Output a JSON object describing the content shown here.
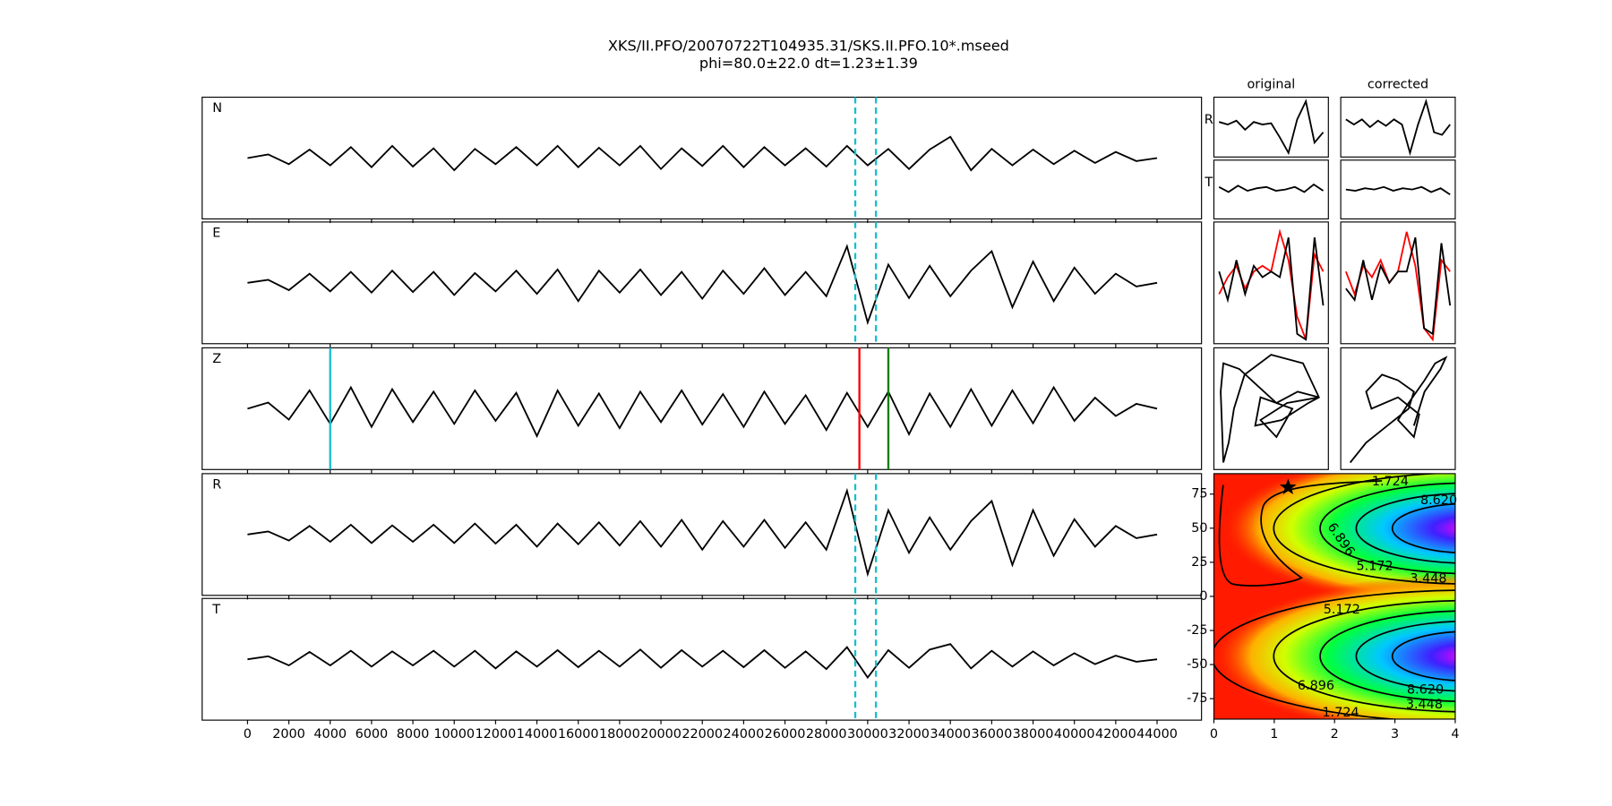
{
  "chart_data": [
    {
      "type": "seismogram",
      "title": "XKS/II.PFO/20070722T104935.31/SKS.II.PFO.10*.mseed",
      "subtitle": "phi=80.0±22.0 dt=1.23±1.39",
      "x": [
        0,
        1000,
        2000,
        3000,
        4000,
        5000,
        6000,
        7000,
        8000,
        9000,
        10000,
        11000,
        12000,
        13000,
        14000,
        15000,
        16000,
        17000,
        18000,
        19000,
        20000,
        21000,
        22000,
        23000,
        24000,
        25000,
        26000,
        27000,
        28000,
        29000,
        30000,
        31000,
        32000,
        33000,
        34000,
        35000,
        36000,
        37000,
        38000,
        39000,
        40000,
        41000,
        42000,
        43000,
        44000
      ],
      "xlim": [
        -2195,
        46150
      ],
      "xticks": [
        0,
        2000,
        4000,
        6000,
        8000,
        10000,
        12000,
        14000,
        16000,
        18000,
        20000,
        22000,
        24000,
        26000,
        28000,
        30000,
        32000,
        34000,
        36000,
        38000,
        40000,
        42000,
        44000
      ],
      "ylim": [
        -1,
        1
      ],
      "series": [
        {
          "name": "N",
          "color": "#000000",
          "window": [
            29400,
            30400
          ],
          "values": [
            0,
            0.06,
            -0.1,
            0.14,
            -0.12,
            0.18,
            -0.15,
            0.2,
            -0.14,
            0.16,
            -0.2,
            0.15,
            -0.1,
            0.18,
            -0.12,
            0.2,
            -0.15,
            0.17,
            -0.12,
            0.2,
            -0.18,
            0.16,
            -0.13,
            0.2,
            -0.15,
            0.18,
            -0.12,
            0.16,
            -0.14,
            0.2,
            -0.12,
            0.15,
            -0.18,
            0.14,
            0.35,
            -0.2,
            0.15,
            -0.12,
            0.14,
            -0.1,
            0.12,
            -0.08,
            0.1,
            -0.05,
            0
          ]
        },
        {
          "name": "E",
          "color": "#000000",
          "window": [
            29400,
            30400
          ],
          "values": [
            0,
            0.05,
            -0.12,
            0.15,
            -0.14,
            0.18,
            -0.16,
            0.2,
            -0.15,
            0.18,
            -0.2,
            0.16,
            -0.14,
            0.2,
            -0.18,
            0.22,
            -0.3,
            0.2,
            -0.16,
            0.22,
            -0.2,
            0.18,
            -0.26,
            0.2,
            -0.18,
            0.24,
            -0.2,
            0.18,
            -0.22,
            0.6,
            -0.65,
            0.3,
            -0.25,
            0.28,
            -0.22,
            0.2,
            0.52,
            -0.4,
            0.35,
            -0.3,
            0.25,
            -0.18,
            0.15,
            -0.06,
            0
          ]
        },
        {
          "name": "Z",
          "color": "#000000",
          "markers": [
            {
              "x": 4000,
              "color": "#17becf"
            },
            {
              "x": 29600,
              "color": "#ff0000"
            },
            {
              "x": 31000,
              "color": "#008000"
            }
          ],
          "values": [
            0,
            0.1,
            -0.18,
            0.3,
            -0.25,
            0.35,
            -0.3,
            0.32,
            -0.22,
            0.28,
            -0.25,
            0.3,
            -0.2,
            0.26,
            -0.45,
            0.3,
            -0.28,
            0.25,
            -0.32,
            0.28,
            -0.22,
            0.3,
            -0.26,
            0.24,
            -0.3,
            0.28,
            -0.25,
            0.22,
            -0.35,
            0.26,
            -0.3,
            0.28,
            -0.42,
            0.25,
            -0.3,
            0.32,
            -0.28,
            0.3,
            -0.24,
            0.35,
            -0.2,
            0.18,
            -0.12,
            0.08,
            0
          ]
        },
        {
          "name": "R",
          "color": "#000000",
          "window": [
            29400,
            30400
          ],
          "values": [
            0,
            0.05,
            -0.1,
            0.14,
            -0.12,
            0.16,
            -0.14,
            0.15,
            -0.12,
            0.16,
            -0.14,
            0.18,
            -0.15,
            0.16,
            -0.2,
            0.18,
            -0.16,
            0.2,
            -0.18,
            0.22,
            -0.2,
            0.24,
            -0.25,
            0.22,
            -0.2,
            0.24,
            -0.22,
            0.2,
            -0.25,
            0.72,
            -0.65,
            0.4,
            -0.3,
            0.28,
            -0.25,
            0.22,
            0.55,
            -0.5,
            0.4,
            -0.35,
            0.25,
            -0.2,
            0.14,
            -0.06,
            0
          ]
        },
        {
          "name": "T",
          "color": "#000000",
          "window": [
            29400,
            30400
          ],
          "values": [
            0,
            0.05,
            -0.1,
            0.12,
            -0.1,
            0.14,
            -0.12,
            0.13,
            -0.1,
            0.14,
            -0.12,
            0.14,
            -0.15,
            0.13,
            -0.12,
            0.15,
            -0.13,
            0.14,
            -0.12,
            0.16,
            -0.14,
            0.15,
            -0.12,
            0.14,
            -0.13,
            0.15,
            -0.14,
            0.13,
            -0.16,
            0.2,
            -0.3,
            0.15,
            -0.14,
            0.16,
            0.25,
            -0.15,
            0.14,
            -0.12,
            0.13,
            -0.1,
            0.1,
            -0.08,
            0.06,
            -0.04,
            0
          ]
        }
      ],
      "window_color": "#17becf"
    },
    {
      "type": "traces",
      "ylim": [
        -1,
        1
      ],
      "row_labels": [
        "R",
        "T"
      ],
      "columns": [
        {
          "name": "original",
          "R": [
            0.2,
            0.1,
            0.25,
            -0.1,
            0.2,
            0.1,
            0.15,
            -0.4,
            -1,
            0.3,
            1,
            -0.6,
            -0.2
          ],
          "T": [
            0.1,
            -0.1,
            0.15,
            -0.05,
            0.05,
            0.1,
            -0.05,
            0,
            0.1,
            -0.1,
            0.2,
            -0.05
          ],
          "E": [
            {
              "color": "#ff0000",
              "values": [
                -0.2,
                0.1,
                0.3,
                -0.1,
                0.2,
                0.3,
                0.2,
                0.9,
                0.4,
                -0.6,
                -1,
                0.5,
                0.2
              ]
            },
            {
              "color": "#000000",
              "values": [
                0.2,
                -0.3,
                0.4,
                -0.2,
                0.3,
                0.1,
                0.2,
                0.1,
                0.8,
                -0.9,
                -1,
                0.8,
                -0.4
              ]
            }
          ],
          "particle": {
            "x": [
              -0.9,
              -0.8,
              -0.7,
              -0.5,
              0,
              0.6,
              0.9,
              0.7,
              0.2,
              -0.3,
              -0.2,
              0.4,
              0.1,
              -0.2,
              0.3,
              0.9,
              0.5,
              0.1,
              -0.6,
              -0.9,
              -0.95,
              -0.9
            ],
            "y": [
              -0.95,
              -0.6,
              0,
              0.6,
              0.95,
              0.8,
              0.2,
              0.1,
              -0.2,
              -0.3,
              0.2,
              0,
              -0.5,
              -0.2,
              0.1,
              0.2,
              0.3,
              0.1,
              0.7,
              0.8,
              0.3,
              -0.95
            ]
          }
        },
        {
          "name": "corrected",
          "R": [
            0.3,
            0.1,
            0.3,
            0,
            0.25,
            0.05,
            0.3,
            0.1,
            -1,
            0.1,
            1,
            -0.2,
            -0.3,
            0.1
          ],
          "T": [
            0,
            -0.05,
            0.05,
            0,
            0.1,
            -0.05,
            0.05,
            0,
            0.1,
            -0.1,
            0.05,
            -0.2
          ],
          "E": [
            {
              "color": "#ff0000",
              "values": [
                0.2,
                -0.2,
                0.3,
                0.1,
                0.4,
                0,
                0.2,
                0.9,
                0.3,
                -0.8,
                -1,
                0.4,
                0.2
              ]
            },
            {
              "color": "#000000",
              "values": [
                -0.1,
                -0.3,
                0.4,
                -0.3,
                0.3,
                0,
                0.2,
                0.2,
                0.8,
                -0.8,
                -0.9,
                0.7,
                -0.4
              ]
            }
          ],
          "particle": {
            "x": [
              -0.9,
              -0.6,
              -0.2,
              0.2,
              0.3,
              0,
              -0.3,
              -0.6,
              -0.5,
              0,
              0.4,
              0.3,
              0,
              0.2,
              0.5,
              0.7,
              0.9,
              0.8,
              0.5,
              0.3
            ],
            "y": [
              -0.95,
              -0.6,
              -0.3,
              0,
              0.3,
              0.5,
              0.6,
              0.3,
              0,
              0.2,
              -0.1,
              -0.5,
              -0.2,
              0.1,
              0.5,
              0.8,
              0.9,
              0.7,
              0.3,
              -0.3
            ]
          }
        }
      ]
    },
    {
      "type": "contour",
      "xlim": [
        0,
        4
      ],
      "ylim": [
        -90,
        90
      ],
      "xticks": [
        0,
        1,
        2,
        3,
        4
      ],
      "yticks": [
        75,
        50,
        25,
        0,
        -25,
        -50,
        -75
      ],
      "levels": [
        1.724,
        3.448,
        5.172,
        6.896,
        8.62
      ],
      "value_labels": [
        "1.724",
        "3.448",
        "5.172",
        "6.896",
        "8.620"
      ],
      "star": {
        "x": 1.23,
        "y": 80
      }
    }
  ]
}
